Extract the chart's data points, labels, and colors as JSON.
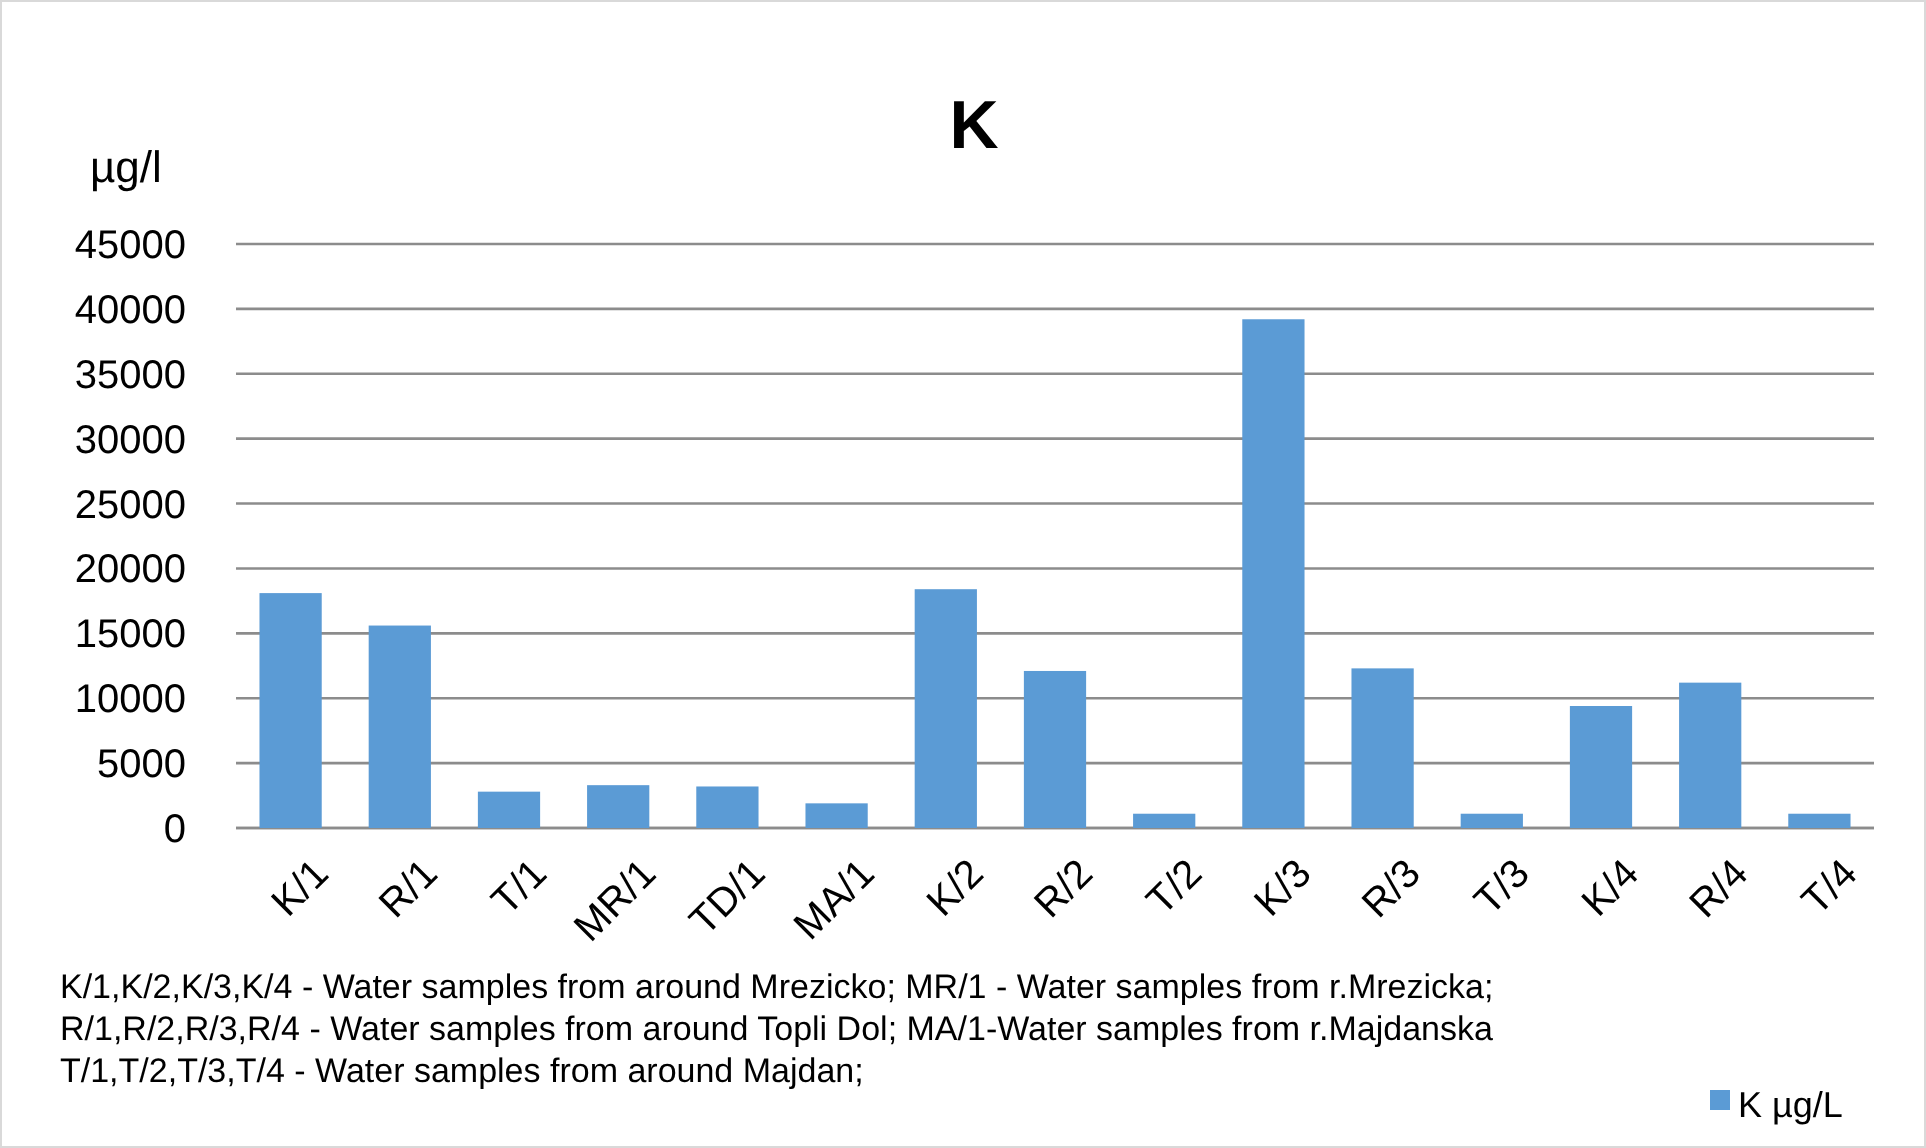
{
  "chart_data": {
    "type": "bar",
    "title": "K",
    "ylabel": "µg/l",
    "categories": [
      "K/1",
      "R/1",
      "T/1",
      "MR/1",
      "TD/1",
      "MA/1",
      "K/2",
      "R/2",
      "T/2",
      "K/3",
      "R/3",
      "T/3",
      "K/4",
      "R/4",
      "T/4"
    ],
    "series": [
      {
        "name": "K µg/L",
        "color": "#5b9bd5",
        "values": [
          18100,
          15600,
          2800,
          3300,
          3200,
          1900,
          18400,
          12100,
          1100,
          39200,
          12300,
          1100,
          9400,
          11200,
          1100
        ]
      }
    ],
    "ylim": [
      0,
      45000
    ],
    "yticks": [
      0,
      5000,
      10000,
      15000,
      20000,
      25000,
      30000,
      35000,
      40000,
      45000
    ],
    "grid": "y",
    "legend": "bottom right",
    "annotations": [
      "K/1,K/2,K/3,K/4 - Water samples from around Mrezicko;  MR/1 - Water samples from r.Mrezicka;",
      "R/1,R/2,R/3,R/4 - Water samples from around Topli Dol; MA/1-Water samples from r.Majdanska",
      "T/1,T/2,T/3,T/4 - Water samples from around Majdan;"
    ]
  }
}
